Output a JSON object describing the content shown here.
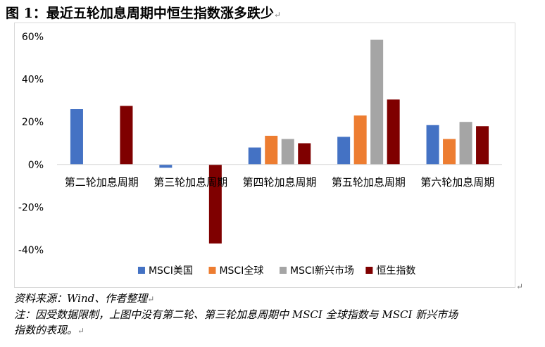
{
  "figure": {
    "title": "图 1：最近五轮加息周期中恒生指数涨多跌少",
    "source": "资料来源：Wind、作者整理",
    "note_line1": "注：因受数据限制，上图中没有第二轮、第三轮加息周期中 MSCI 全球指数与 MSCI 新兴市场",
    "note_line2": "指数的表现。"
  },
  "chart_data": {
    "type": "bar",
    "categories": [
      "第二轮加息周期",
      "第三轮加息周期",
      "第四轮加息周期",
      "第五轮加息周期",
      "第六轮加息周期"
    ],
    "series": [
      {
        "name": "MSCI美国",
        "color": "#4472C4",
        "values": [
          0.26,
          -0.015,
          0.08,
          0.13,
          0.185
        ]
      },
      {
        "name": "MSCI全球",
        "color": "#ED7D31",
        "values": [
          null,
          null,
          0.135,
          0.23,
          0.12
        ]
      },
      {
        "name": "MSCI新兴市场",
        "color": "#A5A5A5",
        "values": [
          null,
          null,
          0.12,
          0.585,
          0.2
        ]
      },
      {
        "name": "恒生指数",
        "color": "#7F0000",
        "values": [
          0.275,
          -0.37,
          0.1,
          0.305,
          0.18
        ]
      }
    ],
    "ylim": [
      -0.4,
      0.6
    ],
    "yticks": [
      0.6,
      0.4,
      0.2,
      0.0,
      -0.2,
      -0.4
    ],
    "ytick_labels": [
      "60%",
      "40%",
      "20%",
      "0%",
      "-20%",
      "-40%"
    ],
    "grid": false,
    "legend_position": "bottom",
    "title": "",
    "xlabel": "",
    "ylabel": ""
  }
}
